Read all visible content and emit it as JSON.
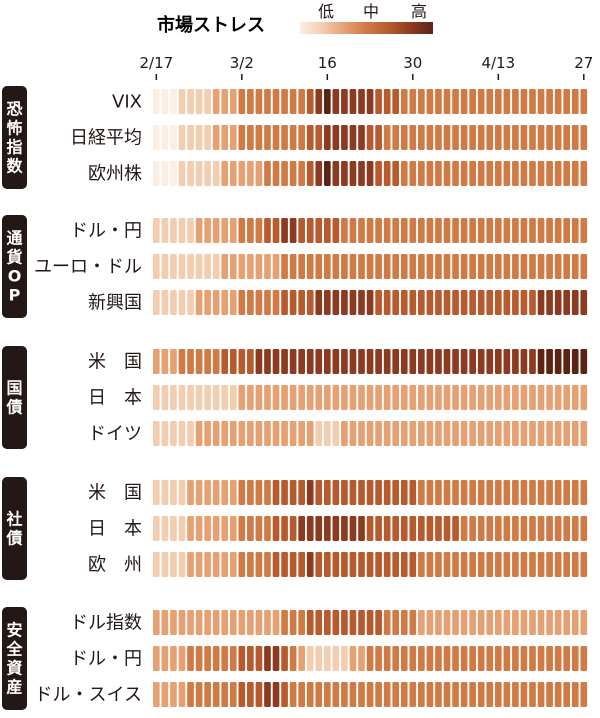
{
  "chart_data": {
    "type": "heatmap",
    "title": "市場ストレス",
    "legend": {
      "levels": [
        "低",
        "中",
        "高"
      ],
      "colors": [
        "#fbeee4",
        "#f3cdb0",
        "#e6a173",
        "#d07a45",
        "#b75a2e",
        "#8c3b20",
        "#5c2415"
      ]
    },
    "x_tick_labels": [
      "2/17",
      "3/2",
      "16",
      "30",
      "4/13",
      "27"
    ],
    "x_tick_columns": [
      0,
      10,
      20,
      30,
      40,
      50
    ],
    "num_columns": 51,
    "groups": [
      {
        "label": "恐怖指数",
        "rows": [
          {
            "label": "VIX",
            "anchors": [
              [
                0,
                0
              ],
              [
                5,
                1
              ],
              [
                8,
                2
              ],
              [
                12,
                3
              ],
              [
                18,
                3.5
              ],
              [
                20,
                5.5
              ],
              [
                24,
                5
              ],
              [
                28,
                3.5
              ],
              [
                35,
                3
              ],
              [
                45,
                2.5
              ],
              [
                50,
                2.5
              ]
            ]
          },
          {
            "label": "日経平均",
            "anchors": [
              [
                0,
                0
              ],
              [
                5,
                1
              ],
              [
                8,
                2
              ],
              [
                12,
                3
              ],
              [
                18,
                3.5
              ],
              [
                20,
                5
              ],
              [
                24,
                4.5
              ],
              [
                28,
                3
              ],
              [
                40,
                3
              ],
              [
                50,
                3
              ]
            ]
          },
          {
            "label": "欧州株",
            "anchors": [
              [
                0,
                0
              ],
              [
                5,
                1
              ],
              [
                10,
                2
              ],
              [
                15,
                3
              ],
              [
                18,
                3.5
              ],
              [
                20,
                5.5
              ],
              [
                24,
                5
              ],
              [
                28,
                3.5
              ],
              [
                40,
                3
              ],
              [
                50,
                3
              ]
            ]
          }
        ]
      },
      {
        "label": "通貨OP",
        "rows": [
          {
            "label": "ドル・円",
            "anchors": [
              [
                0,
                1
              ],
              [
                5,
                1.5
              ],
              [
                12,
                3
              ],
              [
                15,
                5
              ],
              [
                18,
                4
              ],
              [
                25,
                3
              ],
              [
                40,
                2.5
              ],
              [
                50,
                2.5
              ]
            ]
          },
          {
            "label": "ユーロ・ドル",
            "anchors": [
              [
                0,
                1
              ],
              [
                5,
                1
              ],
              [
                10,
                2
              ],
              [
                20,
                3
              ],
              [
                30,
                2.5
              ],
              [
                50,
                2.5
              ]
            ]
          },
          {
            "label": "新興国",
            "anchors": [
              [
                0,
                1
              ],
              [
                5,
                1.5
              ],
              [
                10,
                2.5
              ],
              [
                15,
                3.5
              ],
              [
                18,
                4
              ],
              [
                20,
                5
              ],
              [
                25,
                4.5
              ],
              [
                35,
                4
              ],
              [
                45,
                4.5
              ],
              [
                50,
                4.5
              ]
            ]
          }
        ]
      },
      {
        "label": "国債",
        "rows": [
          {
            "label": "米　国",
            "anchors": [
              [
                0,
                2
              ],
              [
                5,
                3
              ],
              [
                10,
                4
              ],
              [
                14,
                5
              ],
              [
                20,
                4.5
              ],
              [
                28,
                5
              ],
              [
                35,
                5
              ],
              [
                40,
                4.5
              ],
              [
                45,
                5.5
              ],
              [
                50,
                5.5
              ]
            ]
          },
          {
            "label": "日　本",
            "anchors": [
              [
                0,
                1
              ],
              [
                10,
                1.5
              ],
              [
                20,
                2
              ],
              [
                30,
                2
              ],
              [
                40,
                1.5
              ],
              [
                50,
                1.5
              ]
            ]
          },
          {
            "label": "ドイツ",
            "anchors": [
              [
                0,
                1
              ],
              [
                10,
                2
              ],
              [
                17,
                2
              ],
              [
                19,
                1
              ],
              [
                22,
                1.5
              ],
              [
                30,
                2
              ],
              [
                40,
                1.5
              ],
              [
                50,
                1.5
              ]
            ]
          }
        ]
      },
      {
        "label": "社債",
        "rows": [
          {
            "label": "米　国",
            "anchors": [
              [
                0,
                1
              ],
              [
                8,
                2
              ],
              [
                14,
                3.5
              ],
              [
                18,
                4.5
              ],
              [
                24,
                4
              ],
              [
                30,
                3.5
              ],
              [
                40,
                3
              ],
              [
                50,
                3
              ]
            ]
          },
          {
            "label": "日　本",
            "anchors": [
              [
                0,
                1
              ],
              [
                8,
                2
              ],
              [
                14,
                3.5
              ],
              [
                18,
                5
              ],
              [
                24,
                4.5
              ],
              [
                30,
                4
              ],
              [
                40,
                3
              ],
              [
                50,
                3
              ]
            ]
          },
          {
            "label": "欧　州",
            "anchors": [
              [
                0,
                1
              ],
              [
                8,
                2
              ],
              [
                14,
                3.5
              ],
              [
                18,
                4.5
              ],
              [
                24,
                4
              ],
              [
                30,
                3.5
              ],
              [
                40,
                3
              ],
              [
                50,
                3
              ]
            ]
          }
        ]
      },
      {
        "label": "安全資産",
        "rows": [
          {
            "label": "ドル指数",
            "anchors": [
              [
                0,
                1.5
              ],
              [
                10,
                2
              ],
              [
                15,
                2.5
              ],
              [
                18,
                3.5
              ],
              [
                22,
                4
              ],
              [
                26,
                3.5
              ],
              [
                32,
                2
              ],
              [
                40,
                2
              ],
              [
                50,
                2
              ]
            ]
          },
          {
            "label": "ドル・円",
            "anchors": [
              [
                0,
                2
              ],
              [
                8,
                3
              ],
              [
                12,
                4
              ],
              [
                14,
                5
              ],
              [
                16,
                3
              ],
              [
                18,
                1
              ],
              [
                22,
                1
              ],
              [
                25,
                2.5
              ],
              [
                30,
                3
              ],
              [
                40,
                3
              ],
              [
                50,
                3
              ]
            ]
          },
          {
            "label": "ドル・スイス",
            "anchors": [
              [
                0,
                2
              ],
              [
                8,
                3
              ],
              [
                12,
                4
              ],
              [
                14,
                5
              ],
              [
                16,
                3
              ],
              [
                20,
                2.5
              ],
              [
                30,
                2.5
              ],
              [
                40,
                2.5
              ],
              [
                50,
                2.5
              ]
            ]
          }
        ]
      }
    ]
  }
}
